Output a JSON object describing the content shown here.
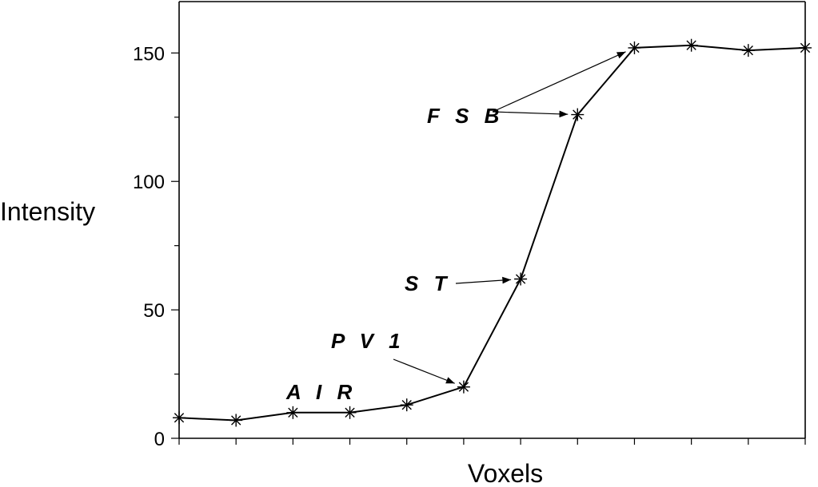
{
  "chart_data": {
    "type": "line",
    "title": "",
    "xlabel": "Voxels",
    "ylabel": "Intensity",
    "xlim": [
      1,
      12
    ],
    "ylim": [
      0,
      170
    ],
    "yticks": [
      0,
      50,
      100,
      150
    ],
    "grid": false,
    "x": [
      1,
      2,
      3,
      4,
      5,
      6,
      7,
      8,
      9,
      10,
      11,
      12
    ],
    "series": [
      {
        "values": [
          8,
          7,
          10,
          10,
          13,
          20,
          62,
          126,
          152,
          153,
          151,
          152
        ]
      }
    ],
    "annotations": [
      {
        "text": "A I R",
        "targets": []
      },
      {
        "text": "P V 1",
        "targets": [
          6
        ]
      },
      {
        "text": "S T",
        "targets": [
          7
        ]
      },
      {
        "text": "F S B",
        "targets": [
          8,
          9
        ]
      }
    ]
  }
}
